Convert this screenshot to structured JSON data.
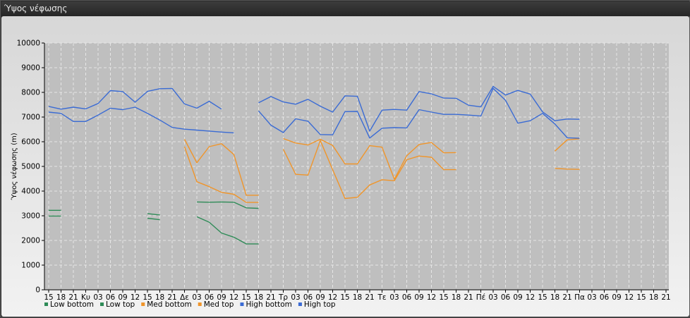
{
  "window": {
    "title": "Ύψος νέφωσης"
  },
  "chart_data": {
    "type": "line",
    "title": "",
    "xlabel": "",
    "ylabel": "Ύψος νέφωσης (m)",
    "ylim": [
      0,
      10000
    ],
    "yticks": [
      0,
      1000,
      2000,
      3000,
      4000,
      5000,
      6000,
      7000,
      8000,
      9000,
      10000
    ],
    "grid": true,
    "legend_position": "bottom-left",
    "categories": [
      "15",
      "18",
      "21",
      "Κυ",
      "03",
      "06",
      "09",
      "12",
      "15",
      "18",
      "21",
      "Δε",
      "03",
      "06",
      "09",
      "12",
      "15",
      "18",
      "21",
      "Τρ",
      "03",
      "06",
      "09",
      "12",
      "15",
      "18",
      "21",
      "Τε",
      "03",
      "06",
      "09",
      "12",
      "15",
      "18",
      "21",
      "Πέ",
      "03",
      "06",
      "09",
      "12",
      "15",
      "18",
      "21",
      "Πα",
      "03",
      "06",
      "09",
      "12",
      "15",
      "18",
      "21"
    ],
    "series": [
      {
        "name": "Low bottom",
        "color": "#2e8b57",
        "values": [
          2990,
          2990,
          null,
          null,
          null,
          null,
          null,
          null,
          2900,
          2840,
          null,
          null,
          2960,
          2740,
          2300,
          2130,
          1860,
          1860,
          null,
          null,
          null,
          null,
          null,
          null,
          null,
          null,
          null,
          null,
          null,
          null,
          null,
          null,
          null,
          null,
          null,
          null,
          null,
          null,
          null,
          null,
          null,
          null,
          null,
          null,
          null,
          null,
          null,
          null,
          null,
          null,
          null
        ]
      },
      {
        "name": "Low top",
        "color": "#2e8b57",
        "values": [
          3220,
          3220,
          null,
          null,
          null,
          null,
          null,
          null,
          3090,
          3030,
          null,
          null,
          3560,
          3550,
          3560,
          3550,
          3320,
          3300,
          null,
          null,
          null,
          null,
          null,
          null,
          null,
          null,
          null,
          null,
          null,
          null,
          null,
          null,
          null,
          null,
          null,
          null,
          null,
          null,
          null,
          null,
          null,
          null,
          null,
          null,
          null,
          null,
          null,
          null,
          null,
          null,
          null
        ]
      },
      {
        "name": "Med bottom",
        "color": "#f0952a",
        "values": [
          null,
          null,
          null,
          null,
          null,
          null,
          null,
          null,
          null,
          null,
          null,
          5800,
          4380,
          4180,
          3950,
          3870,
          3540,
          3540,
          null,
          5700,
          4680,
          4650,
          6050,
          4870,
          3700,
          3750,
          4250,
          4460,
          4420,
          5270,
          5420,
          5370,
          4870,
          4870,
          null,
          null,
          null,
          null,
          null,
          null,
          null,
          4920,
          4890,
          4880,
          null,
          null,
          null,
          null,
          null,
          null,
          null
        ]
      },
      {
        "name": "Med top",
        "color": "#f0952a",
        "values": [
          null,
          null,
          null,
          null,
          null,
          null,
          null,
          null,
          null,
          null,
          null,
          6100,
          5150,
          5800,
          5920,
          5480,
          3830,
          3830,
          null,
          6130,
          5950,
          5870,
          6100,
          5850,
          5100,
          5100,
          5840,
          5780,
          4480,
          5430,
          5890,
          5970,
          5550,
          5560,
          null,
          null,
          null,
          null,
          null,
          null,
          null,
          5620,
          6080,
          6120,
          null,
          null,
          null,
          null,
          null,
          null,
          null
        ]
      },
      {
        "name": "High bottom",
        "color": "#3a6bd4",
        "values": [
          7200,
          7150,
          6820,
          6820,
          7080,
          7360,
          7300,
          7400,
          7150,
          6880,
          6580,
          6510,
          6470,
          6430,
          6390,
          6360,
          null,
          7250,
          6670,
          6370,
          6930,
          6830,
          6290,
          6280,
          7220,
          7230,
          6150,
          6550,
          6570,
          6560,
          7300,
          7200,
          7110,
          7110,
          7080,
          7040,
          8160,
          7680,
          6750,
          6850,
          7150,
          6720,
          6160,
          6140,
          null,
          null,
          null,
          null,
          null,
          null,
          null
        ]
      },
      {
        "name": "High top",
        "color": "#3a6bd4",
        "values": [
          7430,
          7320,
          7400,
          7330,
          7550,
          8070,
          8030,
          7600,
          8040,
          8150,
          8160,
          7530,
          7360,
          7640,
          7320,
          null,
          null,
          7580,
          7830,
          7610,
          7520,
          7720,
          7440,
          7200,
          7860,
          7840,
          6430,
          7280,
          7310,
          7280,
          8030,
          7940,
          7770,
          7760,
          7480,
          7410,
          8240,
          7890,
          8080,
          7930,
          7210,
          6850,
          6920,
          6910,
          null,
          null,
          null,
          null,
          null,
          null,
          null
        ]
      }
    ]
  }
}
